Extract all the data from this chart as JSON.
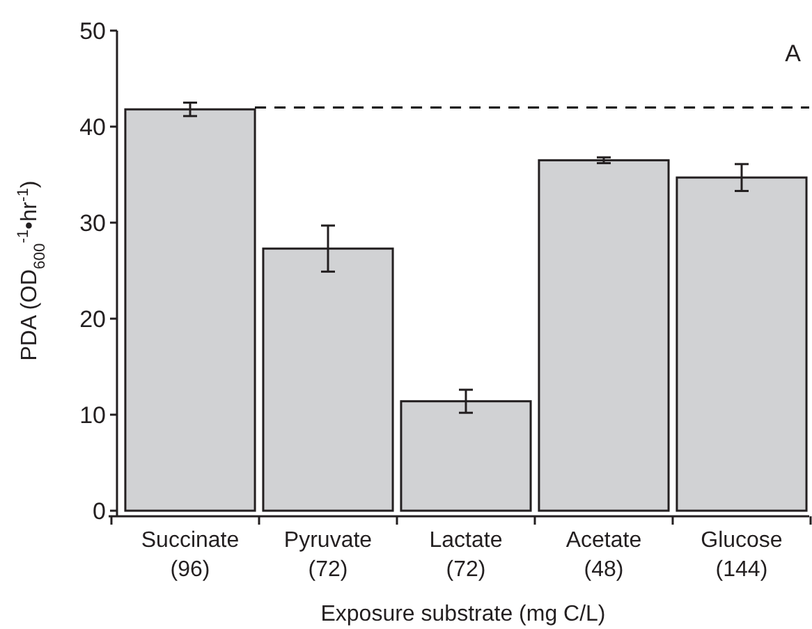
{
  "chart_data": {
    "type": "bar",
    "xlabel": "Exposure substrate (mg C/L)",
    "ylabel": "PDA (OD$_{600}$$^{-1}$•hr$^{-1}$)",
    "categories": [
      "Succinate\n(96)",
      "Pyruvate\n(72)",
      "Lactate\n(72)",
      "Acetate\n(48)",
      "Glucose\n(144)"
    ],
    "values": [
      41.8,
      27.3,
      11.4,
      36.5,
      34.7
    ],
    "errors": [
      0.7,
      2.4,
      1.2,
      0.3,
      1.4
    ],
    "color": "#d1d2d4",
    "ylim": [
      0,
      50
    ],
    "yticks": [
      0,
      10,
      20,
      30,
      40,
      50
    ],
    "ref_lines": [
      {
        "axis": "y",
        "value": 42,
        "line_style": "dashed",
        "color": "#000000"
      }
    ],
    "annotations": [
      "A"
    ],
    "grid": false
  }
}
